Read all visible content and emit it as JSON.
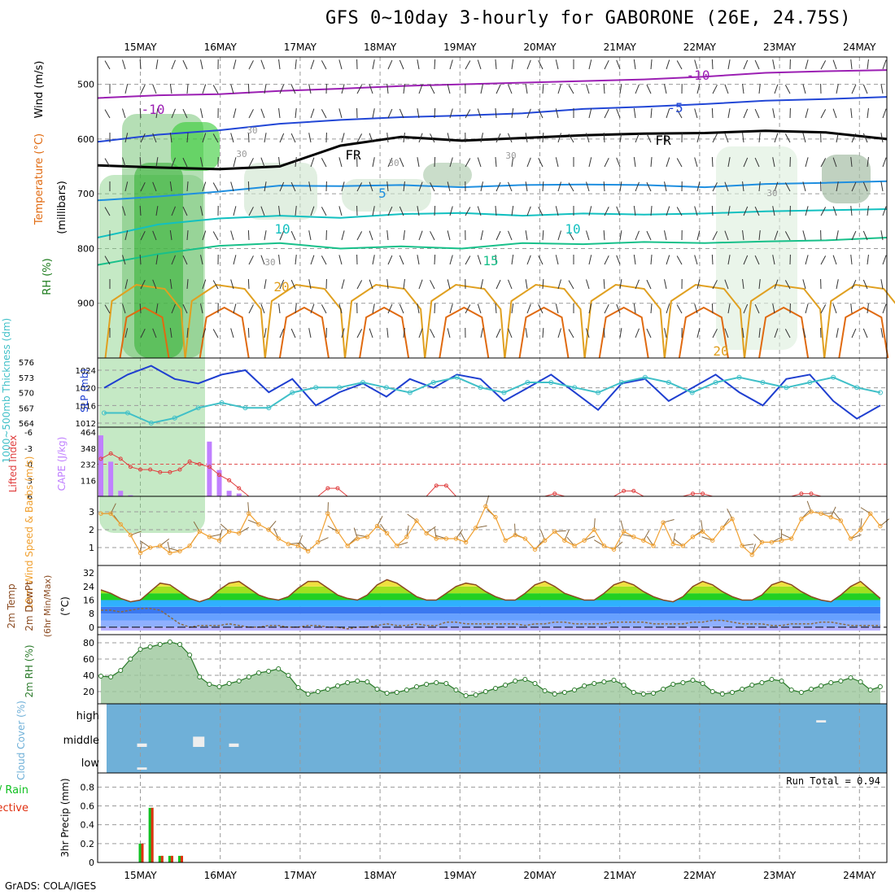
{
  "title": "GFS 0~10day 3-hourly for GABORONE (26E, 24.75S)",
  "footer": "GrADS: COLA/IGES",
  "chart_data": [
    {
      "type": "line",
      "panel": "upper-air",
      "ylabel_parts": [
        "RH (%)",
        "Temperature (°C)",
        "Wind (m/s)",
        "(millibars)"
      ],
      "dates": [
        "15MAY",
        "16MAY",
        "17MAY",
        "18MAY",
        "19MAY",
        "20MAY",
        "21MAY",
        "22MAY",
        "23MAY",
        "24MAY"
      ],
      "yticks": [
        500,
        600,
        700,
        800,
        900
      ],
      "ylim": [
        1000,
        450
      ],
      "isotherm_labels": [
        "-10",
        "-10",
        "-5",
        "FR",
        "FR",
        "5",
        "10",
        "10",
        "15",
        "20",
        "20"
      ],
      "rh_labels": [
        "30",
        "30",
        "30",
        "30",
        "30",
        "30"
      ],
      "isotherms": [
        {
          "label": "-10",
          "color": "#9b1fb3",
          "p": [
            525,
            520,
            518,
            512,
            508,
            503,
            500,
            497,
            494,
            491,
            486,
            479,
            476,
            474
          ]
        },
        {
          "label": "-5",
          "color": "#2247d6",
          "p": [
            605,
            592,
            584,
            572,
            565,
            560,
            557,
            553,
            545,
            541,
            536,
            530,
            527,
            523
          ]
        },
        {
          "label": "FR",
          "color": "#000000",
          "p": [
            648,
            652,
            655,
            650,
            612,
            596,
            603,
            598,
            593,
            590,
            589,
            585,
            588,
            600
          ]
        },
        {
          "label": "5",
          "color": "#1f8fe0",
          "p": [
            712,
            705,
            696,
            685,
            686,
            684,
            688,
            684,
            683,
            684,
            688,
            682,
            680,
            677
          ]
        },
        {
          "label": "10",
          "color": "#12c0c0",
          "p": [
            780,
            756,
            745,
            740,
            744,
            737,
            735,
            740,
            736,
            738,
            736,
            732,
            730,
            728
          ]
        },
        {
          "label": "15",
          "color": "#18c08a",
          "p": [
            830,
            810,
            795,
            790,
            800,
            796,
            800,
            790,
            792,
            788,
            790,
            787,
            785,
            780
          ]
        }
      ]
    },
    {
      "type": "line",
      "panel": "slp-thickness",
      "ylabel_left": "1000~500mb Thickness (dm)",
      "ylabel_right": "SLP (mb)",
      "thickness_ticks": [
        564,
        567,
        570,
        573,
        576
      ],
      "slp_ticks": [
        1012,
        1016,
        1020,
        1024
      ],
      "series": [
        {
          "name": "SLP",
          "unit": "mb",
          "color": "#1f3fd0",
          "values": [
            1020,
            1023,
            1025,
            1022,
            1021,
            1023,
            1024,
            1019,
            1022,
            1016,
            1019,
            1021,
            1018,
            1022,
            1020,
            1023,
            1022,
            1017,
            1020,
            1023,
            1019,
            1015,
            1021,
            1022,
            1017,
            1020,
            1023,
            1019,
            1016,
            1022,
            1023,
            1017,
            1013,
            1016
          ]
        },
        {
          "name": "Thickness",
          "unit": "dm",
          "color": "#40c0c8",
          "values": [
            566,
            566,
            564,
            565,
            567,
            568,
            567,
            567,
            570,
            571,
            571,
            572,
            571,
            570,
            572,
            573,
            571,
            570,
            572,
            572,
            571,
            570,
            572,
            573,
            572,
            570,
            572,
            573,
            572,
            571,
            572,
            573,
            571,
            570
          ]
        }
      ]
    },
    {
      "type": "bar",
      "panel": "cape-li",
      "ylabel_left": "Lifted Index",
      "ylabel_right": "CAPE (J/kg)",
      "li_ticks": [
        "-6",
        "-3",
        "0",
        "3",
        "6"
      ],
      "cape_ticks": [
        "116",
        "232",
        "348",
        "464"
      ],
      "cape": [
        440,
        250,
        40,
        8,
        0,
        0,
        0,
        0,
        0,
        0,
        0,
        395,
        190,
        40,
        20,
        0,
        0,
        0,
        0,
        0,
        0,
        0,
        0,
        0,
        0,
        0,
        0,
        0,
        0,
        0,
        0,
        0,
        0,
        0,
        0,
        0,
        0,
        0,
        0,
        0,
        0,
        0,
        0,
        0,
        0,
        0,
        0,
        0,
        0,
        0,
        0,
        0,
        0,
        0,
        0,
        0,
        0,
        0,
        0,
        0,
        0,
        0,
        0,
        0,
        0,
        0,
        0,
        0,
        0,
        0,
        0,
        0,
        0,
        0,
        0,
        0,
        0,
        0,
        0,
        0
      ],
      "li": [
        -1,
        -2,
        -1,
        0.5,
        1,
        1,
        1.5,
        1.5,
        1,
        -0.5,
        0,
        0.5,
        2,
        3,
        4.5,
        6,
        6,
        6,
        6,
        6,
        6,
        6,
        6,
        4.5,
        4.5,
        6,
        6,
        6,
        6,
        6,
        6,
        6,
        6,
        6,
        4,
        4,
        6,
        6,
        6,
        6,
        6,
        6,
        6,
        6,
        6,
        6,
        5.5,
        6,
        6,
        6,
        6,
        6,
        6,
        5,
        5,
        6,
        6,
        6,
        6,
        6,
        5.5,
        5.5,
        6,
        6,
        6,
        6,
        6,
        6,
        6,
        6,
        6,
        5.5,
        5.5,
        6,
        6,
        6,
        6,
        6,
        6,
        6
      ]
    },
    {
      "type": "line",
      "panel": "wind-10m",
      "ylabel": "10m Wind Speed & Barbs (m/s)",
      "yticks": [
        "1",
        "2",
        "3"
      ],
      "values": [
        2.9,
        2.9,
        2.3,
        1.7,
        0.7,
        1.0,
        1.1,
        0.7,
        0.8,
        1.1,
        1.9,
        1.6,
        1.4,
        1.9,
        1.8,
        2.9,
        2.3,
        2.0,
        1.5,
        1.2,
        1.1,
        0.8,
        1.3,
        2.9,
        1.9,
        1.1,
        1.5,
        1.6,
        2.2,
        1.8,
        1.1,
        1.6,
        2.5,
        1.8,
        1.5,
        1.5,
        1.5,
        1.3,
        2.1,
        3.3,
        2.7,
        1.4,
        1.7,
        1.5,
        0.9,
        1.4,
        1.9,
        1.4,
        1.1,
        1.4,
        2.0,
        1.1,
        0.9,
        1.9,
        1.6,
        1.4,
        1.1,
        2.4,
        1.2,
        1.1,
        1.6,
        1.9,
        1.4,
        2.1,
        2.6,
        1.1,
        0.6,
        1.3,
        1.3,
        1.4,
        1.5,
        2.6,
        3.0,
        2.9,
        2.7,
        2.5,
        1.5,
        2.0,
        2.9,
        2.2
      ]
    },
    {
      "type": "area",
      "panel": "temp-2m",
      "ylabel": "2m Temp 2m DewPt (6hr Min/Max) (°C)",
      "yticks": [
        "0",
        "8",
        "16",
        "24",
        "32"
      ],
      "temp": [
        22,
        20,
        17,
        15,
        16,
        21,
        26,
        25,
        21,
        17,
        15,
        17,
        22,
        26,
        27,
        23,
        19,
        17,
        16,
        18,
        23,
        27,
        27,
        23,
        19,
        17,
        16,
        19,
        25,
        28,
        26,
        22,
        18,
        16,
        16,
        20,
        24,
        26,
        25,
        21,
        18,
        16,
        16,
        20,
        25,
        27,
        24,
        20,
        18,
        16,
        16,
        20,
        25,
        27,
        25,
        21,
        18,
        16,
        15,
        18,
        24,
        27,
        25,
        21,
        18,
        16,
        16,
        19,
        25,
        27,
        25,
        21,
        18,
        16,
        15,
        19,
        24,
        27,
        22,
        17
      ],
      "dewpoint": [
        10,
        10,
        9,
        10,
        11,
        11,
        10,
        6,
        2,
        0,
        1,
        1,
        1,
        2,
        1,
        0,
        0,
        1,
        1,
        0,
        0,
        1,
        1,
        0,
        0,
        -1,
        0,
        0,
        1,
        2,
        1,
        1,
        2,
        1,
        1,
        3,
        3,
        2,
        2,
        2,
        2,
        2,
        2,
        1,
        2,
        2,
        3,
        3,
        2,
        2,
        2,
        2,
        3,
        3,
        3,
        3,
        2,
        2,
        2,
        2,
        3,
        3,
        4,
        4,
        3,
        2,
        2,
        2,
        1,
        1,
        2,
        2,
        2,
        3,
        3,
        2,
        1,
        1,
        1,
        1
      ]
    },
    {
      "type": "area",
      "panel": "rh-2m",
      "ylabel": "2m RH (%)",
      "yticks": [
        "20",
        "40",
        "60",
        "80"
      ],
      "values": [
        39,
        38,
        46,
        60,
        72,
        75,
        78,
        81,
        78,
        65,
        38,
        29,
        26,
        30,
        33,
        38,
        43,
        45,
        48,
        40,
        25,
        17,
        20,
        23,
        27,
        31,
        33,
        32,
        23,
        18,
        19,
        22,
        26,
        29,
        31,
        30,
        22,
        15,
        16,
        20,
        24,
        28,
        33,
        35,
        30,
        21,
        17,
        19,
        22,
        27,
        30,
        32,
        34,
        28,
        19,
        17,
        18,
        23,
        29,
        31,
        34,
        30,
        20,
        17,
        19,
        23,
        28,
        31,
        35,
        33,
        22,
        19,
        23,
        27,
        31,
        33,
        37,
        32,
        22,
        26
      ]
    },
    {
      "type": "heatmap",
      "panel": "cloud-cover",
      "ylabel": "Cloud Cover (%)",
      "rows": [
        "high",
        "middle",
        "low"
      ],
      "marks": [
        {
          "level": "middle",
          "x_day": 0.0,
          "value": 15
        },
        {
          "level": "low",
          "x_day": 0.0,
          "value": 10
        },
        {
          "level": "middle",
          "x_day": 0.7,
          "value": 45
        },
        {
          "level": "middle",
          "x_day": 1.15,
          "value": 15
        },
        {
          "level": "high",
          "x_day": 8.5,
          "value": 10
        }
      ]
    },
    {
      "type": "bar",
      "panel": "precip",
      "ylabel": "3hr Precip (mm)",
      "legend": [
        "Total / Rain",
        "Convective"
      ],
      "annotation": "Run Total = 0.94",
      "yticks": [
        "0",
        "0.2",
        "0.4",
        "0.6",
        "0.8"
      ],
      "series": [
        {
          "name": "Total / Rain",
          "color": "#10c020",
          "values": [
            0.2,
            0.58,
            0.07,
            0.07,
            0.07
          ]
        },
        {
          "name": "Convective",
          "color": "#e03010",
          "values": [
            0.2,
            0.58,
            0.07,
            0.07,
            0.07
          ]
        }
      ]
    }
  ]
}
